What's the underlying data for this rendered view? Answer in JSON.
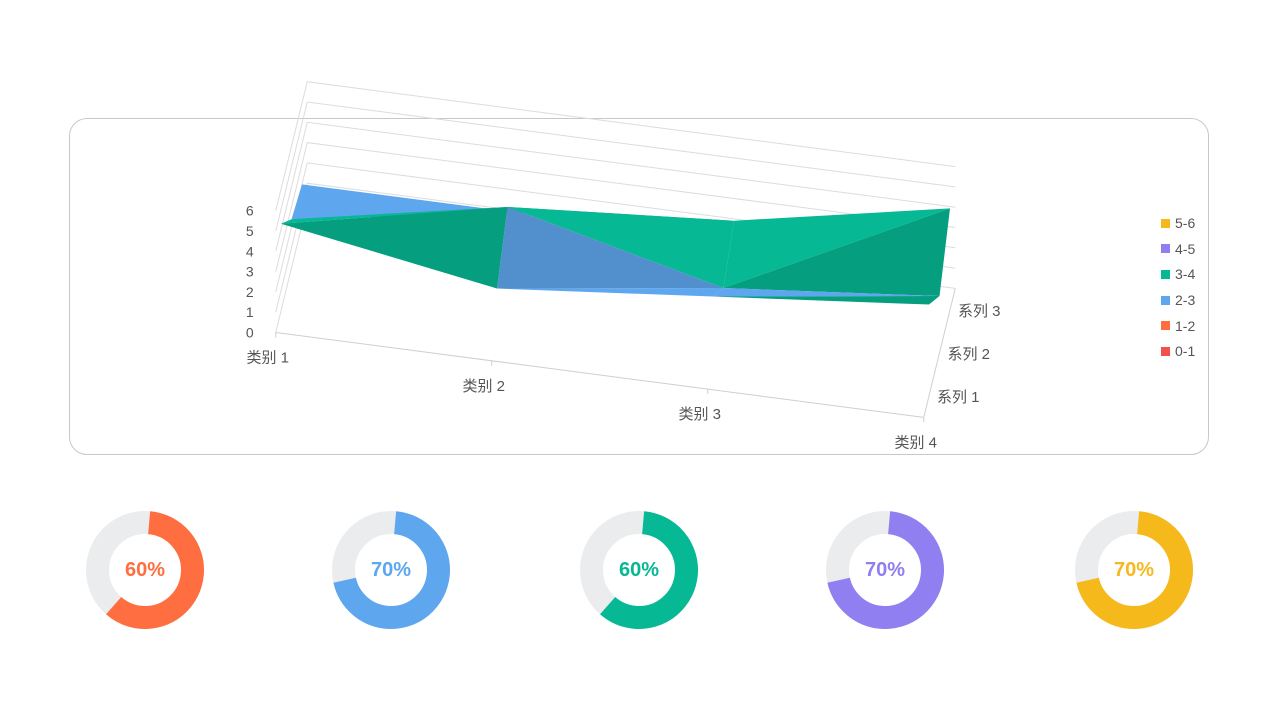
{
  "chart_data": [
    {
      "type": "surface",
      "categories": [
        "类别 1",
        "类别 2",
        "类别 3",
        "类别 4"
      ],
      "series": [
        {
          "name": "系列 1",
          "values": [
            4.3,
            2.5,
            3.5,
            4.5
          ]
        },
        {
          "name": "系列 2",
          "values": [
            2.4,
            4.4,
            1.8,
            2.8
          ]
        },
        {
          "name": "系列 3",
          "values": [
            2.0,
            2.0,
            3.0,
            5.0
          ]
        }
      ],
      "zlim": [
        0,
        6
      ],
      "z_ticks": [
        "0",
        "1",
        "2",
        "3",
        "4",
        "5",
        "6"
      ],
      "legend": {
        "placement": "right",
        "entries": [
          {
            "label": "5-6",
            "color": "#f5b91c"
          },
          {
            "label": "4-5",
            "color": "#8f7ff0"
          },
          {
            "label": "3-4",
            "color": "#06b894"
          },
          {
            "label": "2-3",
            "color": "#5ea6ee"
          },
          {
            "label": "1-2",
            "color": "#ff6e40"
          },
          {
            "label": "0-1",
            "color": "#f2504b"
          }
        ]
      },
      "grid": true
    },
    {
      "type": "pie",
      "label": "60%",
      "value": 60,
      "color": "#ff6e40",
      "track_color": "#ebeced"
    },
    {
      "type": "pie",
      "label": "70%",
      "value": 70,
      "color": "#5ea6ee",
      "track_color": "#ebeced"
    },
    {
      "type": "pie",
      "label": "60%",
      "value": 60,
      "color": "#06b894",
      "track_color": "#ebeced"
    },
    {
      "type": "pie",
      "label": "70%",
      "value": 70,
      "color": "#8f7ff0",
      "track_color": "#ebeced"
    },
    {
      "type": "pie",
      "label": "70%",
      "value": 70,
      "color": "#f5b91c",
      "track_color": "#ebeced"
    }
  ]
}
